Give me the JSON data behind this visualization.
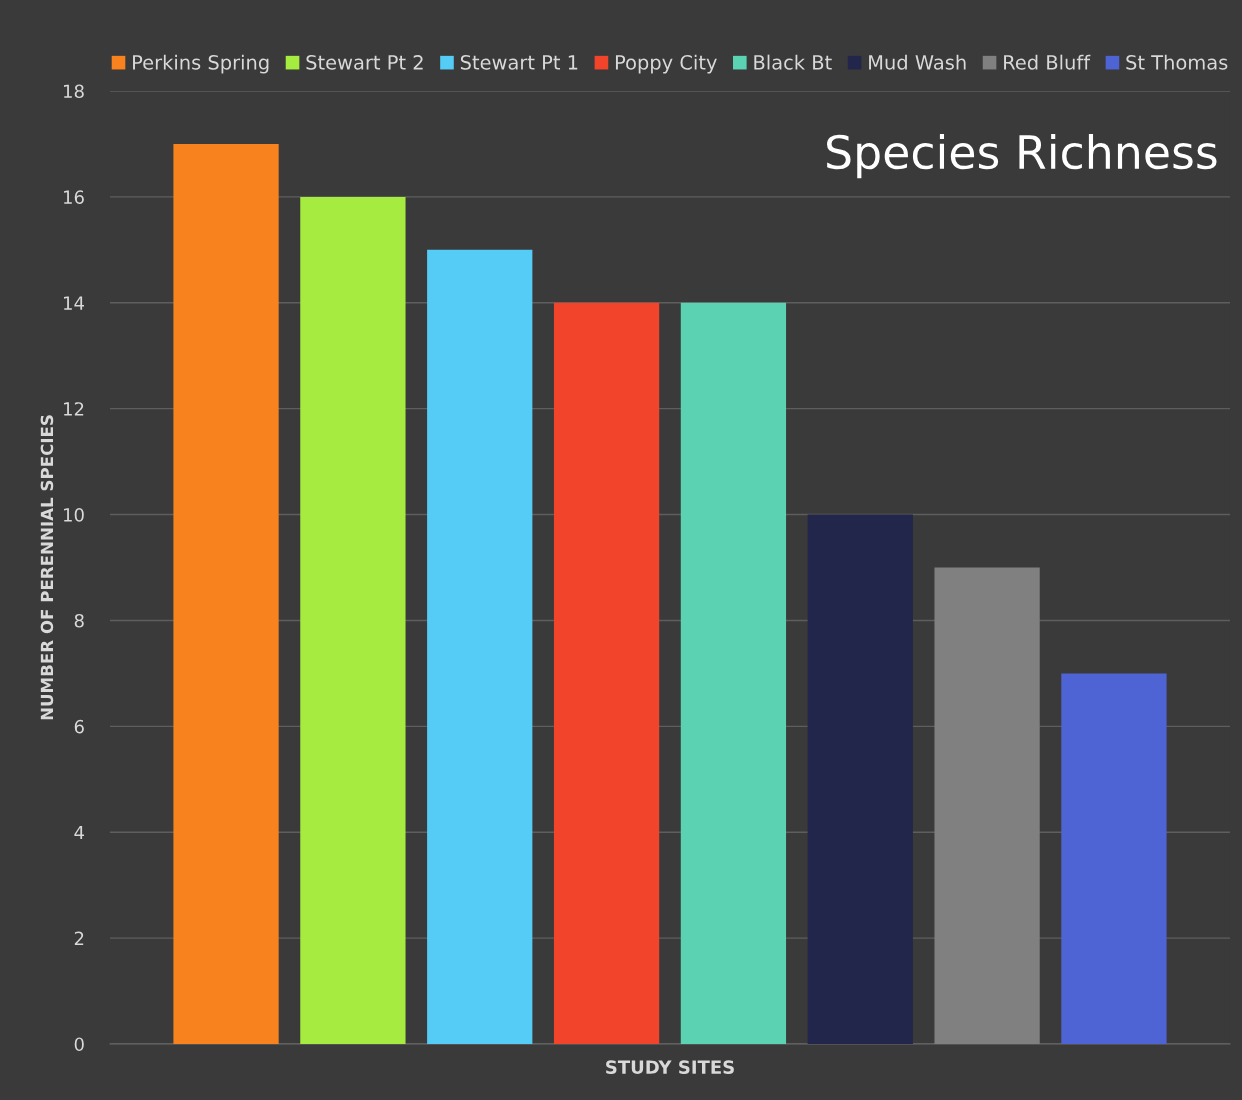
{
  "chart_data": {
    "type": "bar",
    "title": "Species Richness",
    "xlabel": "STUDY SITES",
    "ylabel": "NUMBER OF PERENNIAL SPECIES",
    "categories": [
      null
    ],
    "series": [
      {
        "name": "Perkins Spring",
        "color": "#f7821e",
        "values": [
          17
        ]
      },
      {
        "name": "Stewart Pt 2",
        "color": "#a6ec40",
        "values": [
          16
        ]
      },
      {
        "name": "Stewart Pt 1",
        "color": "#55ccf5",
        "values": [
          15
        ]
      },
      {
        "name": "Poppy City",
        "color": "#f2442a",
        "values": [
          14
        ]
      },
      {
        "name": "Black Bt",
        "color": "#5bd3b3",
        "values": [
          14
        ]
      },
      {
        "name": "Mud Wash",
        "color": "#22264a",
        "values": [
          10
        ]
      },
      {
        "name": "Red Bluff",
        "color": "#808080",
        "values": [
          9
        ]
      },
      {
        "name": "St Thomas",
        "color": "#4f64d4",
        "values": [
          7
        ]
      }
    ],
    "ylim": [
      0,
      18
    ],
    "yticks": [
      0,
      2,
      4,
      6,
      8,
      10,
      12,
      14,
      16,
      18
    ],
    "grid": "y",
    "legend": "top"
  }
}
